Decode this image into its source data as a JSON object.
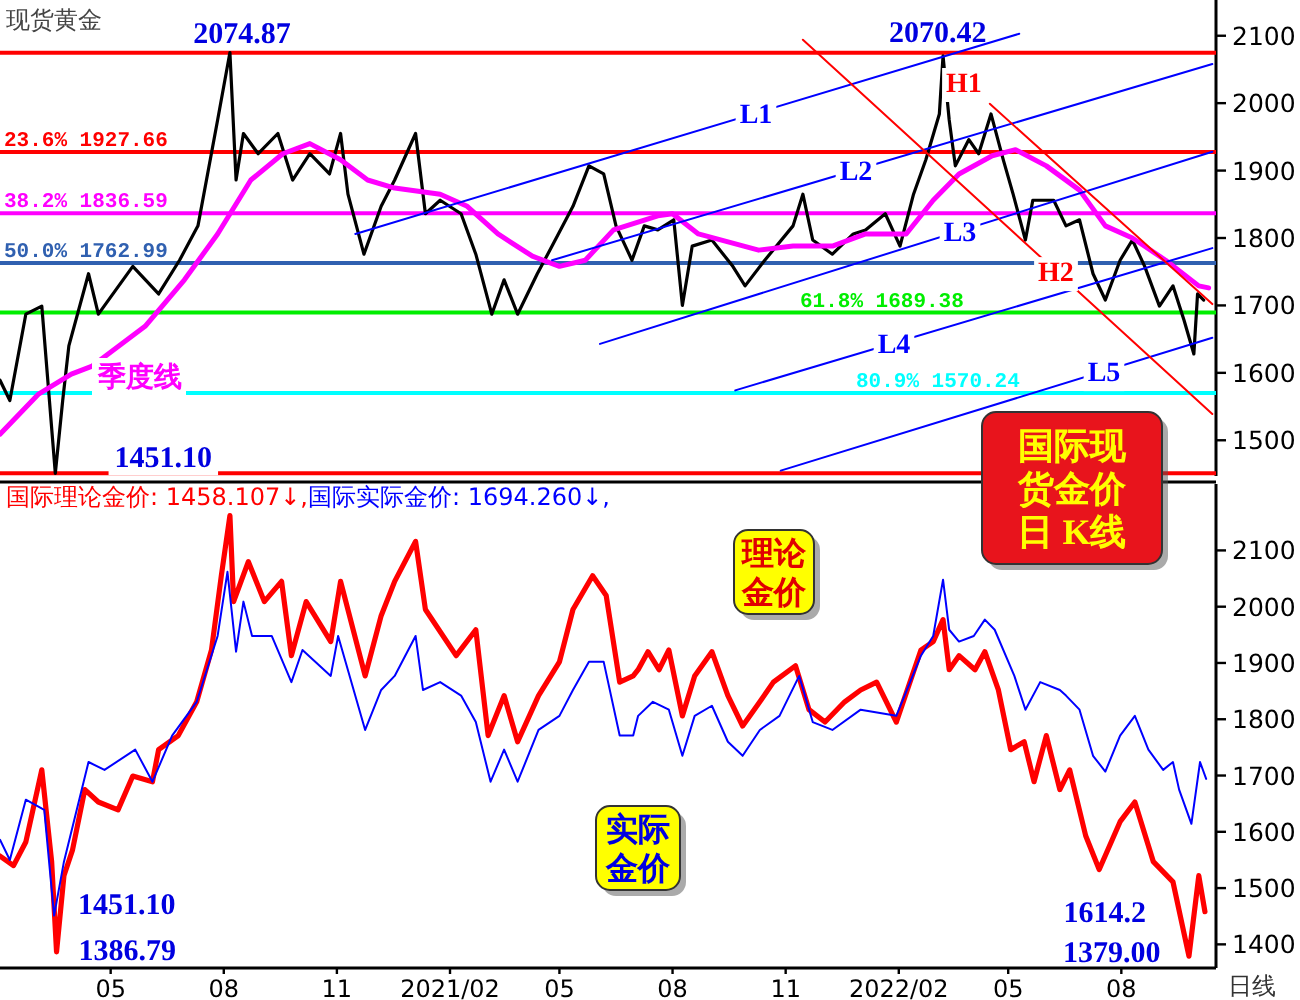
{
  "chart_data": [
    {
      "type": "line",
      "title": "现货黄金",
      "xlim": [
        "2020-02-01",
        "2022-10-17"
      ],
      "ylim": [
        1447,
        2153
      ],
      "yticks": [
        1500,
        1600,
        1700,
        1800,
        1900,
        2000,
        2100
      ],
      "tick_labels": "y",
      "series": [
        {
          "color": "#000000",
          "x": [
            "2020-02-01",
            "2020-02-09",
            "2020-02-22",
            "2020-03-06",
            "2020-03-17",
            "2020-03-23",
            "2020-03-28",
            "2020-04-13",
            "2020-04-21",
            "2020-05-19",
            "2020-06-09",
            "2020-06-26",
            "2020-07-11",
            "2020-07-27",
            "2020-08-06",
            "2020-08-11",
            "2020-08-17",
            "2020-08-29",
            "2020-09-14",
            "2020-09-26",
            "2020-10-10",
            "2020-10-26",
            "2020-11-04",
            "2020-11-10",
            "2020-11-23",
            "2020-12-07",
            "2020-12-18",
            "2021-01-04",
            "2021-01-12",
            "2021-01-24",
            "2021-02-10",
            "2021-02-22",
            "2021-03-07",
            "2021-03-17",
            "2021-03-28",
            "2021-04-13",
            "2021-04-25",
            "2021-05-12",
            "2021-05-25",
            "2021-06-06",
            "2021-06-16",
            "2021-06-29",
            "2021-07-09",
            "2021-07-20",
            "2021-08-02",
            "2021-08-09",
            "2021-08-17",
            "2021-09-02",
            "2021-09-19",
            "2021-09-29",
            "2021-10-15",
            "2021-11-07",
            "2021-11-15",
            "2021-11-23",
            "2021-12-09",
            "2021-12-26",
            "2022-01-05",
            "2022-01-21",
            "2022-02-02",
            "2022-02-13",
            "2022-02-23",
            "2022-03-06",
            "2022-03-09",
            "2022-03-14",
            "2022-03-19",
            "2022-03-30",
            "2022-04-07",
            "2022-04-17",
            "2022-04-27",
            "2022-05-05",
            "2022-05-15",
            "2022-05-21",
            "2022-06-07",
            "2022-06-17",
            "2022-06-28",
            "2022-07-09",
            "2022-07-19",
            "2022-07-31",
            "2022-08-10",
            "2022-08-20",
            "2022-09-01",
            "2022-09-12",
            "2022-09-21",
            "2022-09-29",
            "2022-10-02",
            "2022-10-07"
          ],
          "values": [
            1589,
            1559,
            1687,
            1699,
            1451,
            1559,
            1640,
            1747,
            1687,
            1758,
            1717,
            1767,
            1818,
            1975,
            2075,
            1886,
            1955,
            1925,
            1955,
            1886,
            1925,
            1895,
            1955,
            1865,
            1776,
            1847,
            1886,
            1955,
            1836,
            1856,
            1836,
            1776,
            1687,
            1738,
            1687,
            1747,
            1788,
            1847,
            1907,
            1895,
            1818,
            1767,
            1818,
            1812,
            1827,
            1700,
            1788,
            1797,
            1758,
            1729,
            1767,
            1818,
            1865,
            1797,
            1776,
            1806,
            1812,
            1836,
            1788,
            1865,
            1916,
            1984,
            2070,
            1975,
            1907,
            1946,
            1925,
            1984,
            1916,
            1865,
            1797,
            1856,
            1856,
            1818,
            1827,
            1747,
            1708,
            1767,
            1797,
            1758,
            1699,
            1729,
            1678,
            1628,
            1717,
            1708
          ]
        },
        {
          "name": "季度线",
          "color": "#ff00ff",
          "x": [
            "2020-02-01",
            "2020-03-03",
            "2020-03-30",
            "2020-04-16",
            "2020-05-29",
            "2020-06-30",
            "2020-07-27",
            "2020-08-23",
            "2020-09-18",
            "2020-10-10",
            "2020-11-04",
            "2020-11-26",
            "2020-12-18",
            "2021-01-24",
            "2021-02-15",
            "2021-03-12",
            "2021-04-09",
            "2021-05-01",
            "2021-05-22",
            "2021-06-14",
            "2021-07-20",
            "2021-08-01",
            "2021-08-22",
            "2021-10-10",
            "2021-11-07",
            "2021-12-09",
            "2022-01-05",
            "2022-02-07",
            "2022-03-01",
            "2022-03-22",
            "2022-04-18",
            "2022-05-07",
            "2022-06-01",
            "2022-06-28",
            "2022-07-19",
            "2022-08-10",
            "2022-09-06",
            "2022-10-03",
            "2022-10-11"
          ],
          "values": [
            1509,
            1568,
            1598,
            1610,
            1669,
            1738,
            1806,
            1886,
            1925,
            1940,
            1916,
            1886,
            1874,
            1865,
            1847,
            1806,
            1773,
            1758,
            1767,
            1812,
            1833,
            1836,
            1806,
            1782,
            1788,
            1788,
            1806,
            1806,
            1856,
            1895,
            1922,
            1931,
            1907,
            1871,
            1818,
            1800,
            1767,
            1729,
            1726
          ]
        },
        {
          "name": "L1",
          "color": "#0000ff",
          "x": [
            "2020-11-16",
            "2022-05-10"
          ],
          "values": [
            1806,
            2103
          ]
        },
        {
          "name": "L2",
          "color": "#0000ff",
          "x": [
            "2021-04-25",
            "2022-10-14"
          ],
          "values": [
            1767,
            2058
          ]
        },
        {
          "name": "L3",
          "color": "#0000ff",
          "x": [
            "2021-06-03",
            "2022-10-14"
          ],
          "values": [
            1643,
            1928
          ]
        },
        {
          "name": "L4",
          "color": "#0000ff",
          "x": [
            "2021-09-21",
            "2022-10-14"
          ],
          "values": [
            1574,
            1785
          ]
        },
        {
          "name": "L5",
          "color": "#0000ff",
          "x": [
            "2021-10-28",
            "2022-10-14"
          ],
          "values": [
            1455,
            1652
          ]
        },
        {
          "name": "H1",
          "color": "#ff0000",
          "x": [
            "2022-04-16",
            "2022-10-14"
          ],
          "values": [
            1999,
            1702
          ]
        },
        {
          "name": "H2",
          "color": "#ff0000",
          "x": [
            "2021-11-15",
            "2022-10-14"
          ],
          "values": [
            2094,
            1539
          ]
        }
      ],
      "ref_lines": [
        {
          "axis": "y",
          "value": 2074.87,
          "color": "#ff0000"
        },
        {
          "axis": "y",
          "value": 1927.66,
          "label": "23.6%  1927.66",
          "color": "#ff0000"
        },
        {
          "axis": "y",
          "value": 1836.59,
          "label": "38.2%  1836.59",
          "color": "#ff00ff"
        },
        {
          "axis": "y",
          "value": 1762.99,
          "label": "50.0%  1762.99",
          "color": "#3060b0"
        },
        {
          "axis": "y",
          "value": 1689.38,
          "label": "61.8%  1689.38",
          "color": "#00ee00"
        },
        {
          "axis": "y",
          "value": 1570.24,
          "label": "80.9%  1570.24",
          "color": "#00ffff"
        },
        {
          "axis": "y",
          "value": 1451.1,
          "color": "#ff0000"
        }
      ],
      "annotations": [
        {
          "text": "2074.87",
          "x": "2020-08-06",
          "y": 2074.87
        },
        {
          "text": "2070.42",
          "x": "2022-03-08",
          "y": 2070.42
        },
        {
          "text": "1451.10",
          "x": "2020-03-18",
          "y": 1451.1
        },
        "国际现货金价日 K线"
      ]
    },
    {
      "type": "line",
      "xlim": [
        "2020-02-01",
        "2022-10-17"
      ],
      "ylim": [
        1358,
        2218
      ],
      "yticks": [
        1400,
        1500,
        1600,
        1700,
        1800,
        1900,
        2000,
        2100
      ],
      "xticks": [
        {
          "value": "2020-05-01",
          "label": "05"
        },
        {
          "value": "2020-08-01",
          "label": "08"
        },
        {
          "value": "2020-11-01",
          "label": "11"
        },
        {
          "value": "2021-02-01",
          "label": "2021/02"
        },
        {
          "value": "2021-05-01",
          "label": "05"
        },
        {
          "value": "2021-08-01",
          "label": "08"
        },
        {
          "value": "2021-11-01",
          "label": "11"
        },
        {
          "value": "2022-02-01",
          "label": "2022/02"
        },
        {
          "value": "2022-05-01",
          "label": "05"
        },
        {
          "value": "2022-08-01",
          "label": "08"
        }
      ],
      "series": [
        {
          "name": "国际理论金价",
          "color": "#ff0000",
          "x": [
            "2020-02-01",
            "2020-02-12",
            "2020-02-22",
            "2020-03-06",
            "2020-03-14",
            "2020-03-18",
            "2020-03-24",
            "2020-03-31",
            "2020-04-10",
            "2020-04-21",
            "2020-05-07",
            "2020-05-19",
            "2020-06-04",
            "2020-06-09",
            "2020-06-25",
            "2020-07-10",
            "2020-07-22",
            "2020-07-30",
            "2020-08-06",
            "2020-08-09",
            "2020-08-21",
            "2020-09-03",
            "2020-09-17",
            "2020-09-25",
            "2020-10-07",
            "2020-10-27",
            "2020-11-04",
            "2020-11-24",
            "2020-12-07",
            "2020-12-18",
            "2021-01-04",
            "2021-01-12",
            "2021-02-06",
            "2021-02-22",
            "2021-03-04",
            "2021-03-17",
            "2021-03-28",
            "2021-04-14",
            "2021-05-01",
            "2021-05-12",
            "2021-05-28",
            "2021-06-08",
            "2021-06-19",
            "2021-06-30",
            "2021-07-04",
            "2021-07-12",
            "2021-07-21",
            "2021-07-29",
            "2021-08-09",
            "2021-08-19",
            "2021-09-02",
            "2021-09-15",
            "2021-09-27",
            "2021-10-11",
            "2021-10-22",
            "2021-11-09",
            "2021-11-20",
            "2021-12-03",
            "2021-12-19",
            "2022-01-01",
            "2022-01-14",
            "2022-01-30",
            "2022-02-19",
            "2022-03-01",
            "2022-03-09",
            "2022-03-14",
            "2022-03-22",
            "2022-04-04",
            "2022-04-12",
            "2022-04-23",
            "2022-05-03",
            "2022-05-14",
            "2022-05-22",
            "2022-06-01",
            "2022-06-12",
            "2022-06-20",
            "2022-07-03",
            "2022-07-14",
            "2022-07-31",
            "2022-08-12",
            "2022-08-27",
            "2022-09-12",
            "2022-09-25",
            "2022-10-03",
            "2022-10-08"
          ],
          "values": [
            1557,
            1540,
            1582,
            1710,
            1547,
            1386.79,
            1522,
            1568,
            1675,
            1653,
            1639,
            1699,
            1689,
            1746,
            1771,
            1831,
            1923,
            2055,
            2162,
            2009,
            2080,
            2009,
            2045,
            1913,
            2009,
            1938,
            2045,
            1877,
            1984,
            2045,
            2116,
            1995,
            1913,
            1959,
            1771,
            1842,
            1760,
            1842,
            1902,
            1995,
            2055,
            2020,
            1866,
            1877,
            1888,
            1920,
            1888,
            1923,
            1806,
            1877,
            1920,
            1842,
            1788,
            1831,
            1866,
            1895,
            1817,
            1795,
            1831,
            1852,
            1866,
            1795,
            1923,
            1938,
            1977,
            1888,
            1913,
            1888,
            1920,
            1852,
            1746,
            1760,
            1689,
            1771,
            1675,
            1710,
            1593,
            1533,
            1618,
            1653,
            1547,
            1511,
            1379,
            1522,
            1458
          ]
        },
        {
          "name": "国际实际金价",
          "color": "#0000ff",
          "x": [
            "2020-02-01",
            "2020-02-09",
            "2020-02-22",
            "2020-03-08",
            "2020-03-16",
            "2020-03-24",
            "2020-04-13",
            "2020-04-26",
            "2020-05-21",
            "2020-06-04",
            "2020-06-20",
            "2020-07-10",
            "2020-07-27",
            "2020-08-04",
            "2020-08-11",
            "2020-08-17",
            "2020-08-24",
            "2020-09-09",
            "2020-09-25",
            "2020-10-04",
            "2020-10-27",
            "2020-11-02",
            "2020-11-24",
            "2020-12-07",
            "2020-12-18",
            "2021-01-04",
            "2021-01-10",
            "2021-01-24",
            "2021-02-10",
            "2021-02-22",
            "2021-03-06",
            "2021-03-17",
            "2021-03-28",
            "2021-04-14",
            "2021-05-01",
            "2021-05-12",
            "2021-05-25",
            "2021-06-06",
            "2021-06-19",
            "2021-06-30",
            "2021-07-04",
            "2021-07-16",
            "2021-07-29",
            "2021-08-09",
            "2021-08-19",
            "2021-09-02",
            "2021-09-15",
            "2021-09-27",
            "2021-10-11",
            "2021-10-27",
            "2021-11-12",
            "2021-11-23",
            "2021-12-09",
            "2022-01-01",
            "2022-01-30",
            "2022-02-19",
            "2022-03-01",
            "2022-03-09",
            "2022-03-14",
            "2022-03-22",
            "2022-04-03",
            "2022-04-12",
            "2022-04-20",
            "2022-05-06",
            "2022-05-15",
            "2022-05-27",
            "2022-06-12",
            "2022-06-17",
            "2022-06-28",
            "2022-07-09",
            "2022-07-19",
            "2022-07-31",
            "2022-08-12",
            "2022-08-23",
            "2022-09-04",
            "2022-09-12",
            "2022-09-17",
            "2022-09-27",
            "2022-10-04",
            "2022-10-09"
          ],
          "values": [
            1586,
            1550,
            1657,
            1639,
            1451.1,
            1547,
            1724,
            1710,
            1746,
            1689,
            1771,
            1831,
            1948,
            2062,
            1920,
            2009,
            1948,
            1948,
            1866,
            1923,
            1877,
            1948,
            1781,
            1852,
            1877,
            1948,
            1852,
            1866,
            1842,
            1795,
            1689,
            1746,
            1689,
            1781,
            1806,
            1852,
            1902,
            1902,
            1771,
            1771,
            1806,
            1831,
            1817,
            1735,
            1806,
            1824,
            1760,
            1735,
            1781,
            1806,
            1877,
            1795,
            1781,
            1817,
            1806,
            1913,
            1948,
            2048,
            1959,
            1938,
            1948,
            1977,
            1959,
            1877,
            1817,
            1866,
            1852,
            1842,
            1817,
            1735,
            1707,
            1771,
            1806,
            1746,
            1710,
            1724,
            1675,
            1614.2,
            1724,
            1694
          ]
        }
      ],
      "annotations": [
        ": 1458.107↓,",
        ": 1694.260↓,",
        {
          "text": "1451.10",
          "x": "2020-03-16",
          "y": 1451.1
        },
        {
          "text": "1386.79",
          "x": "2020-03-18",
          "y": 1386.79
        },
        {
          "text": "1614.2",
          "x": "2022-09-27",
          "y": 1614.2
        },
        {
          "text": "1379.00",
          "x": "2022-09-25",
          "y": 1379
        },
        "理论金价",
        "实际金价",
        "日线"
      ]
    }
  ]
}
